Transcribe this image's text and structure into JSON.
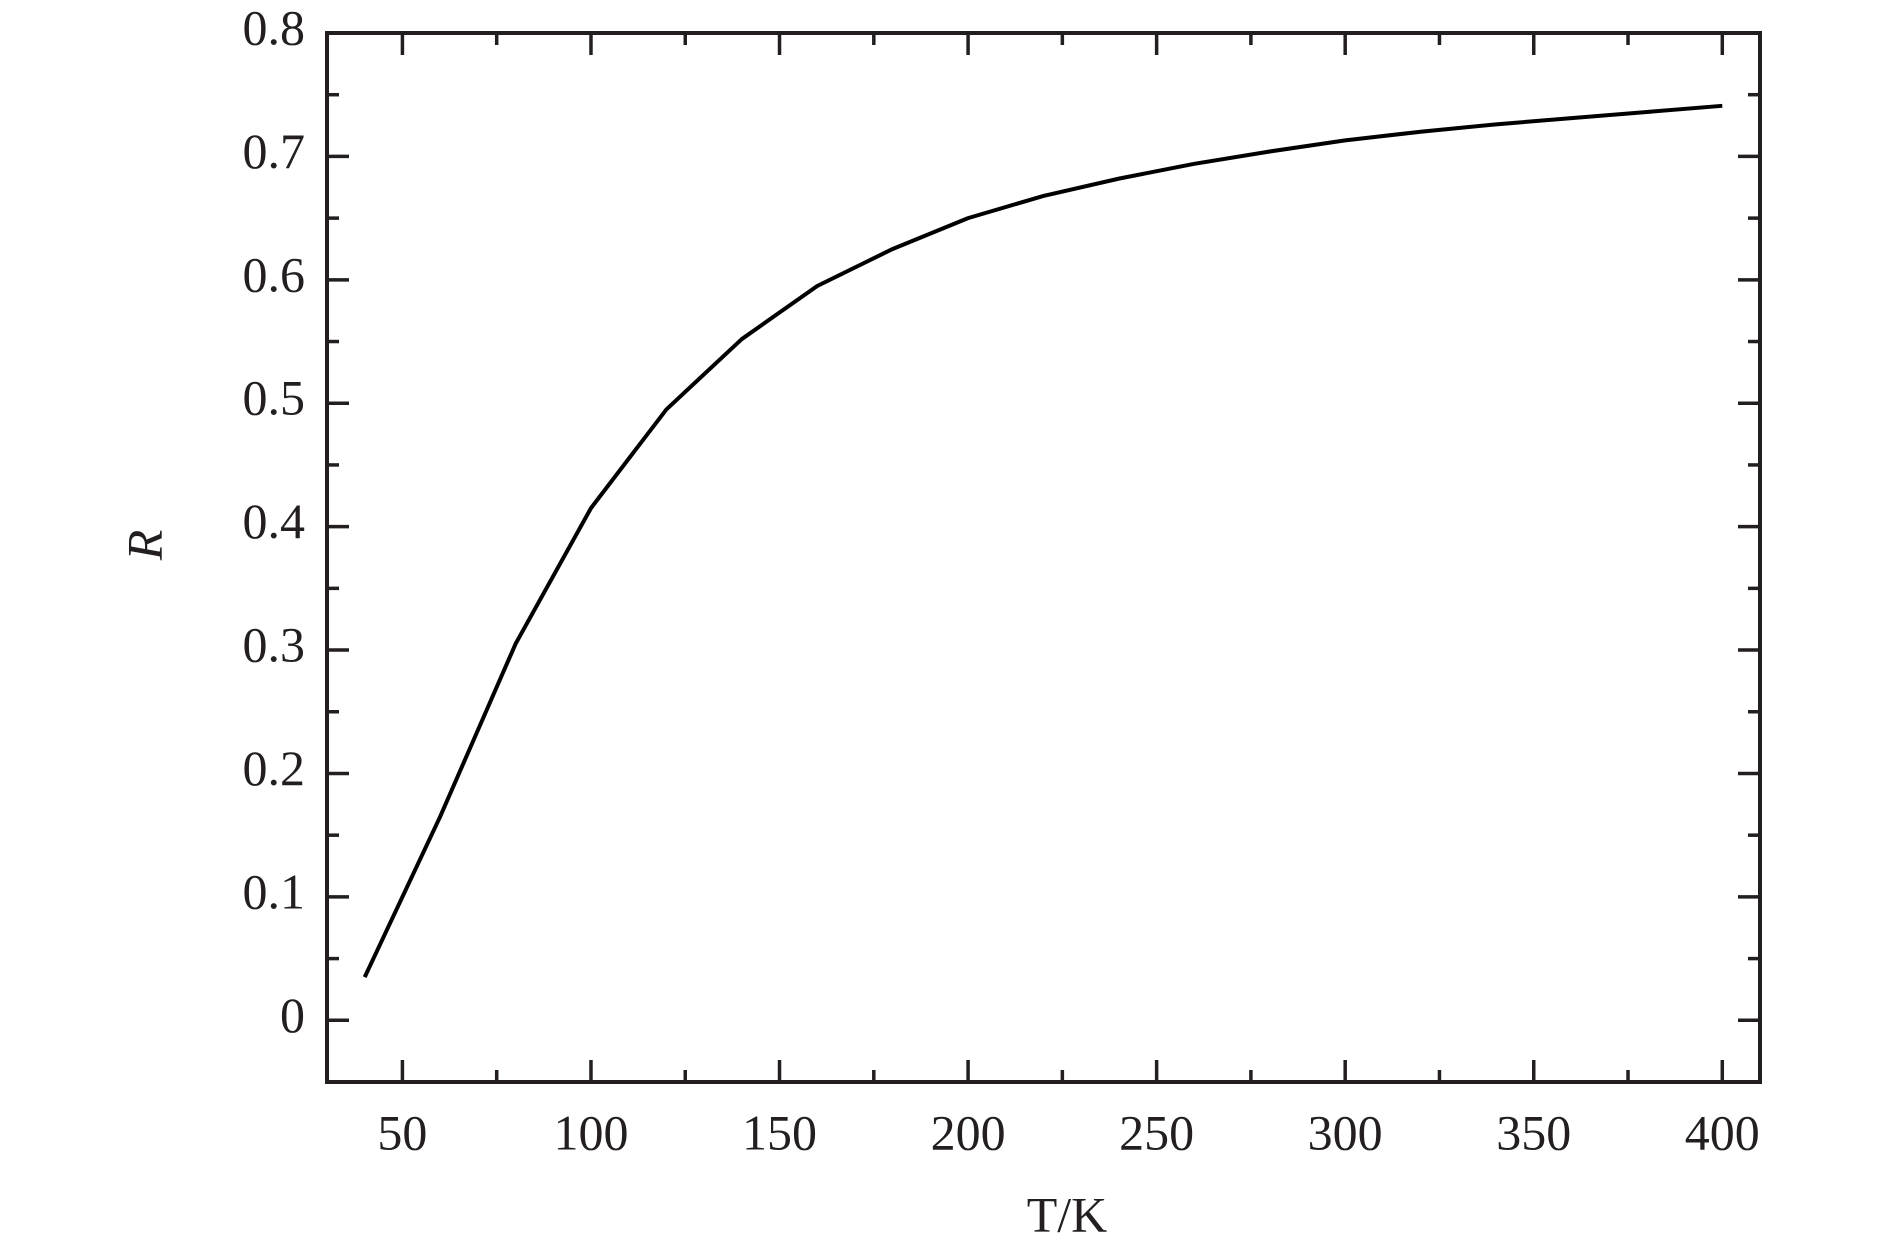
{
  "chart_data": {
    "type": "line",
    "x_label": "T/K",
    "y_label": "R",
    "x": [
      40,
      60,
      80,
      100,
      120,
      140,
      160,
      180,
      200,
      220,
      240,
      260,
      280,
      300,
      320,
      340,
      360,
      380,
      400
    ],
    "series": [
      {
        "color": "#000000",
        "values": [
          0.035,
          0.165,
          0.305,
          0.415,
          0.495,
          0.552,
          0.595,
          0.625,
          0.65,
          0.668,
          0.682,
          0.694,
          0.704,
          0.713,
          0.72,
          0.726,
          0.731,
          0.736,
          0.741
        ]
      }
    ],
    "xlim": [
      30,
      410
    ],
    "ylim": [
      -0.05,
      0.8
    ],
    "xticks": [
      50,
      100,
      150,
      200,
      250,
      300,
      350,
      400
    ],
    "xminorticks": [
      75,
      125,
      175,
      225,
      275,
      325,
      375
    ],
    "yticks": [
      0,
      0.1,
      0.2,
      0.3,
      0.4,
      0.5,
      0.6,
      0.7,
      0.8
    ],
    "yminorticks": [
      -0.05,
      0.05,
      0.15,
      0.25,
      0.35,
      0.45,
      0.55,
      0.65,
      0.75
    ],
    "grid": false
  }
}
